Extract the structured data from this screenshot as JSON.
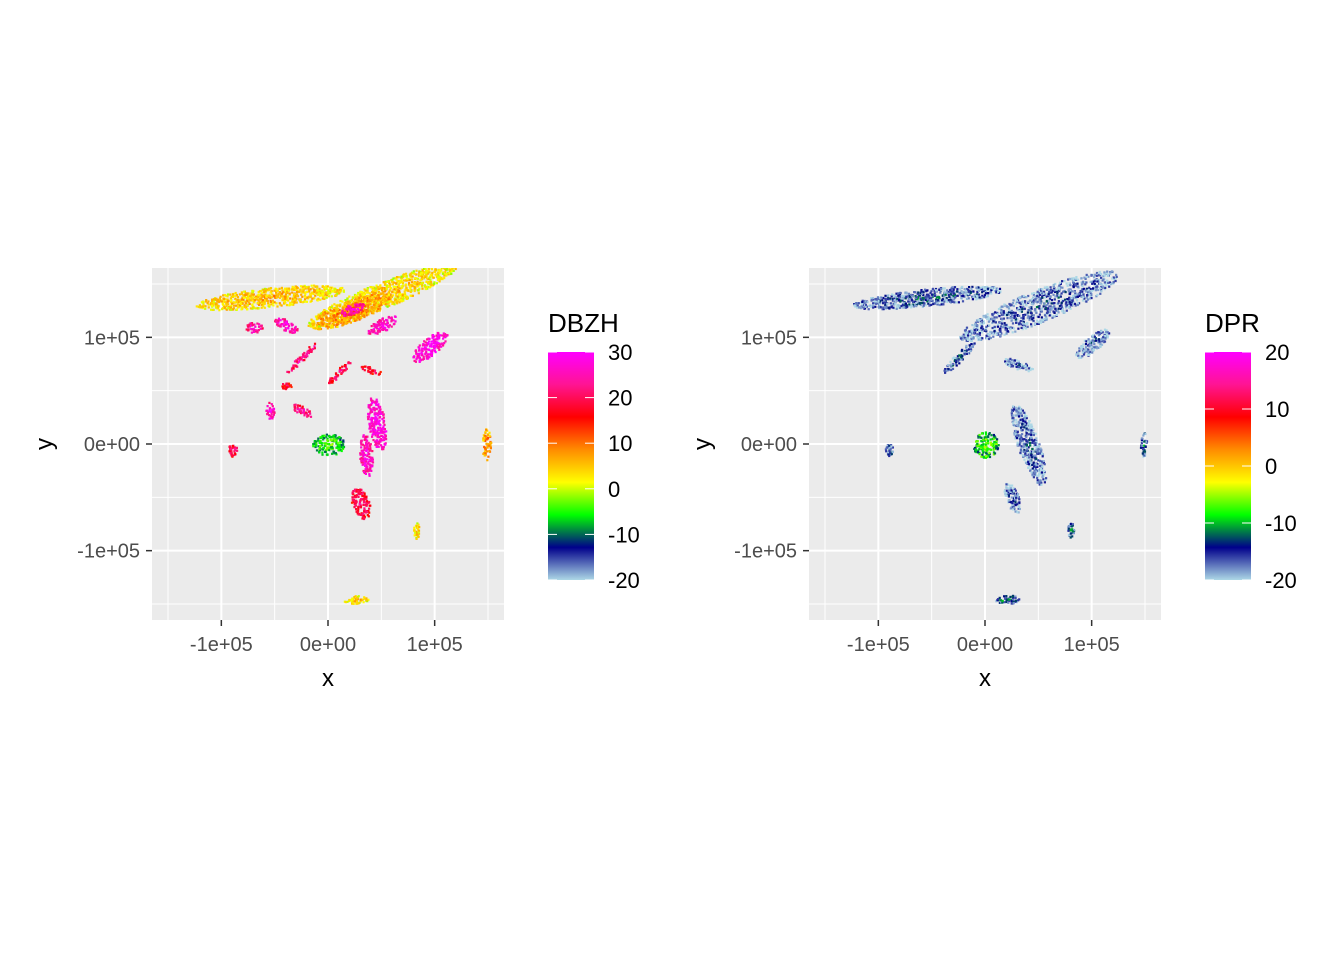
{
  "chart_data": [
    {
      "type": "heatmap",
      "xlabel": "x",
      "ylabel": "y",
      "xlim": [
        -165000,
        165000
      ],
      "ylim": [
        -165000,
        165000
      ],
      "x_ticks": [
        {
          "value": -100000,
          "label": "-1e+05"
        },
        {
          "value": 0,
          "label": "0e+00"
        },
        {
          "value": 100000,
          "label": "1e+05"
        }
      ],
      "y_ticks": [
        {
          "value": -100000,
          "label": "-1e+05"
        },
        {
          "value": 0,
          "label": "0e+00"
        },
        {
          "value": 100000,
          "label": "1e+05"
        }
      ],
      "grid": true,
      "legend": {
        "title": "DBZH",
        "placement": "right",
        "range": [
          -20,
          30
        ],
        "breaks": [
          "30",
          "20",
          "10",
          "0",
          "-10",
          "-20"
        ],
        "break_values": [
          30,
          20,
          10,
          0,
          -10,
          -20
        ],
        "colors": [
          "#add8e6",
          "#00008b",
          "#00ff00",
          "#ffff00",
          "#ff8c00",
          "#ff0000",
          "#ff1493",
          "#ff00ff"
        ]
      },
      "regions": [
        {
          "x": 50000,
          "y": 140000,
          "rx": 75000,
          "ry": 12000,
          "rot": 22,
          "value": 2
        },
        {
          "x": -55000,
          "y": 138000,
          "rx": 70000,
          "ry": 9000,
          "rot": 6,
          "value": 3
        },
        {
          "x": 20000,
          "y": 125000,
          "rx": 40000,
          "ry": 10000,
          "rot": 20,
          "value": 6
        },
        {
          "x": -70000,
          "y": 110000,
          "rx": 8000,
          "ry": 5000,
          "rot": 0,
          "value": 22
        },
        {
          "x": -40000,
          "y": 112000,
          "rx": 12000,
          "ry": 5000,
          "rot": -30,
          "value": 24
        },
        {
          "x": 22000,
          "y": 127000,
          "rx": 12000,
          "ry": 5000,
          "rot": 20,
          "value": 24
        },
        {
          "x": 50000,
          "y": 112000,
          "rx": 15000,
          "ry": 6000,
          "rot": 30,
          "value": 24
        },
        {
          "x": 95000,
          "y": 92000,
          "rx": 20000,
          "ry": 8000,
          "rot": 40,
          "value": 26
        },
        {
          "x": -25000,
          "y": 82000,
          "rx": 20000,
          "ry": 3000,
          "rot": 45,
          "value": 20
        },
        {
          "x": 10000,
          "y": 68000,
          "rx": 15000,
          "ry": 3000,
          "rot": 45,
          "value": 18
        },
        {
          "x": 40000,
          "y": 70000,
          "rx": 10000,
          "ry": 3000,
          "rot": -20,
          "value": 16
        },
        {
          "x": -40000,
          "y": 55000,
          "rx": 5000,
          "ry": 3000,
          "rot": 0,
          "value": 16
        },
        {
          "x": -55000,
          "y": 32000,
          "rx": 4000,
          "ry": 8000,
          "rot": 0,
          "value": 24
        },
        {
          "x": -25000,
          "y": 32000,
          "rx": 10000,
          "ry": 4000,
          "rot": -30,
          "value": 20
        },
        {
          "x": 45000,
          "y": 20000,
          "rx": 8000,
          "ry": 25000,
          "rot": 10,
          "value": 26
        },
        {
          "x": 35000,
          "y": -10000,
          "rx": 6000,
          "ry": 20000,
          "rot": 5,
          "value": 24
        },
        {
          "x": 30000,
          "y": -55000,
          "rx": 8000,
          "ry": 15000,
          "rot": 20,
          "value": 18
        },
        {
          "x": 0,
          "y": 0,
          "rx": 15000,
          "ry": 10000,
          "rot": 0,
          "value": -8
        },
        {
          "x": -90000,
          "y": -5000,
          "rx": 4000,
          "ry": 6000,
          "rot": 0,
          "value": 18
        },
        {
          "x": 148000,
          "y": 0,
          "rx": 4000,
          "ry": 15000,
          "rot": 0,
          "value": 6
        },
        {
          "x": 82000,
          "y": -80000,
          "rx": 3000,
          "ry": 8000,
          "rot": 0,
          "value": 2
        },
        {
          "x": 25000,
          "y": -145000,
          "rx": 12000,
          "ry": 4000,
          "rot": 0,
          "value": 2
        }
      ]
    },
    {
      "type": "heatmap",
      "xlabel": "x",
      "ylabel": "y",
      "xlim": [
        -165000,
        165000
      ],
      "ylim": [
        -165000,
        165000
      ],
      "x_ticks": [
        {
          "value": -100000,
          "label": "-1e+05"
        },
        {
          "value": 0,
          "label": "0e+00"
        },
        {
          "value": 100000,
          "label": "1e+05"
        }
      ],
      "y_ticks": [
        {
          "value": -100000,
          "label": "-1e+05"
        },
        {
          "value": 0,
          "label": "0e+00"
        },
        {
          "value": 100000,
          "label": "1e+05"
        }
      ],
      "grid": true,
      "legend": {
        "title": "DPR",
        "placement": "right",
        "range": [
          -20,
          20
        ],
        "breaks": [
          "20",
          "10",
          "0",
          "-10",
          "-20"
        ],
        "break_values": [
          20,
          10,
          0,
          -10,
          -20
        ],
        "colors": [
          "#add8e6",
          "#00008b",
          "#00ff00",
          "#ffff00",
          "#ff8c00",
          "#ff0000",
          "#ff1493",
          "#ff00ff"
        ]
      },
      "regions": [
        {
          "x": 50000,
          "y": 130000,
          "rx": 80000,
          "ry": 15000,
          "rot": 22,
          "value": -19
        },
        {
          "x": -55000,
          "y": 138000,
          "rx": 70000,
          "ry": 8000,
          "rot": 6,
          "value": -18
        },
        {
          "x": -25000,
          "y": 82000,
          "rx": 20000,
          "ry": 4000,
          "rot": 45,
          "value": -18
        },
        {
          "x": 30000,
          "y": 75000,
          "rx": 15000,
          "ry": 4000,
          "rot": -20,
          "value": -19
        },
        {
          "x": 100000,
          "y": 95000,
          "rx": 20000,
          "ry": 7000,
          "rot": 40,
          "value": -19
        },
        {
          "x": 40000,
          "y": 0,
          "rx": 10000,
          "ry": 40000,
          "rot": 20,
          "value": -19
        },
        {
          "x": 25000,
          "y": -50000,
          "rx": 6000,
          "ry": 15000,
          "rot": 20,
          "value": -19
        },
        {
          "x": 0,
          "y": 0,
          "rx": 12000,
          "ry": 12000,
          "rot": 0,
          "value": -10
        },
        {
          "x": 148000,
          "y": 0,
          "rx": 3000,
          "ry": 12000,
          "rot": 0,
          "value": -17
        },
        {
          "x": 80000,
          "y": -80000,
          "rx": 3000,
          "ry": 7000,
          "rot": 0,
          "value": -16
        },
        {
          "x": -90000,
          "y": -5000,
          "rx": 4000,
          "ry": 6000,
          "rot": 0,
          "value": -18
        },
        {
          "x": 20000,
          "y": -145000,
          "rx": 12000,
          "ry": 4000,
          "rot": 0,
          "value": -16
        }
      ]
    }
  ]
}
